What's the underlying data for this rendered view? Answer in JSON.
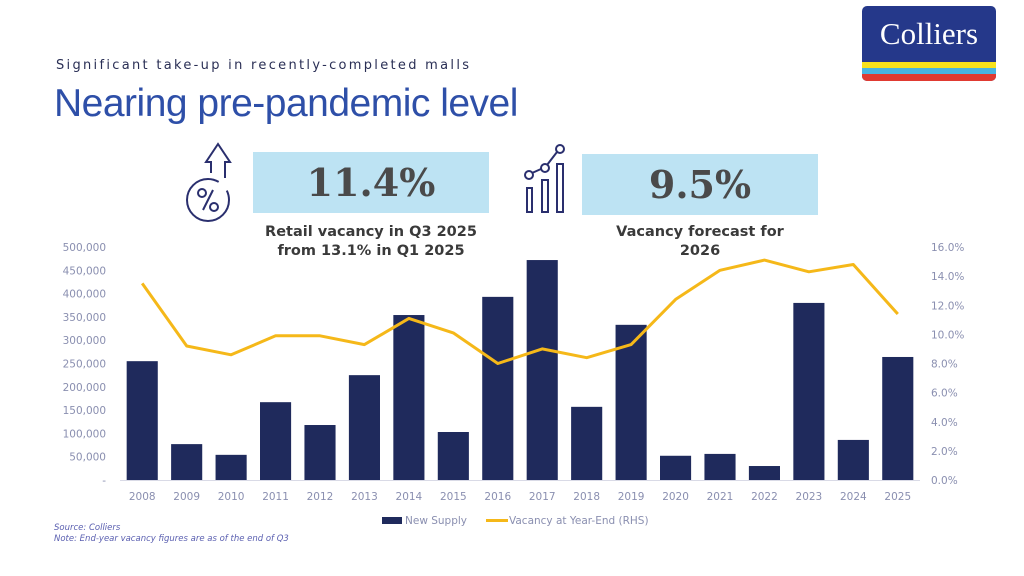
{
  "header": {
    "subtitle": "Significant take-up in recently-completed malls",
    "title": "Nearing pre-pandemic level",
    "logo_text": "Colliers"
  },
  "kpis": [
    {
      "icon": "percent-up-icon",
      "value": "11.4%",
      "caption_line1": "Retail vacancy in Q3 2025",
      "caption_line2": "from 13.1% in Q1 2025"
    },
    {
      "icon": "growth-chart-icon",
      "value": "9.5%",
      "caption_line1": "Vacancy forecast for",
      "caption_line2": "2026"
    }
  ],
  "colors": {
    "bar": "#1f2a5c",
    "line": "#f5b819",
    "kpi_box": "#bde3f3",
    "title": "#2e4fa8",
    "axis_text": "#8a8fb0"
  },
  "footer": {
    "source": "Source: Colliers",
    "note": "Note: End-year vacancy figures are as of the end of Q3"
  },
  "chart_data": {
    "type": "bar",
    "title": "",
    "xlabel": "",
    "ylabel": "",
    "categories": [
      "2008",
      "2009",
      "2010",
      "2011",
      "2012",
      "2013",
      "2014",
      "2015",
      "2016",
      "2017",
      "2018",
      "2019",
      "2020",
      "2021",
      "2022",
      "2023",
      "2024",
      "2025"
    ],
    "series": [
      {
        "name": "New Supply",
        "type": "bar",
        "axis": "left",
        "values": [
          255000,
          77000,
          54000,
          167000,
          118000,
          225000,
          354000,
          103000,
          393000,
          472000,
          157000,
          333000,
          52000,
          56000,
          30000,
          380000,
          86000,
          264000
        ]
      },
      {
        "name": "Vacancy at Year-End (RHS)",
        "type": "line",
        "axis": "right",
        "values": [
          13.5,
          9.2,
          8.6,
          9.9,
          9.9,
          9.3,
          11.1,
          10.1,
          8.0,
          9.0,
          8.4,
          9.3,
          12.4,
          14.4,
          15.1,
          14.3,
          14.8,
          11.4
        ]
      }
    ],
    "left_axis": {
      "range": [
        0,
        500000
      ],
      "ticks": [
        "-",
        "50,000",
        "100,000",
        "150,000",
        "200,000",
        "250,000",
        "300,000",
        "350,000",
        "400,000",
        "450,000",
        "500,000"
      ]
    },
    "right_axis": {
      "range": [
        0,
        16
      ],
      "ticks": [
        "0.0%",
        "2.0%",
        "4.0%",
        "6.0%",
        "8.0%",
        "10.0%",
        "12.0%",
        "14.0%",
        "16.0%"
      ]
    },
    "grid": false,
    "legend": {
      "position": "bottom",
      "entries": [
        "New Supply",
        "Vacancy at Year-End (RHS)"
      ]
    }
  }
}
